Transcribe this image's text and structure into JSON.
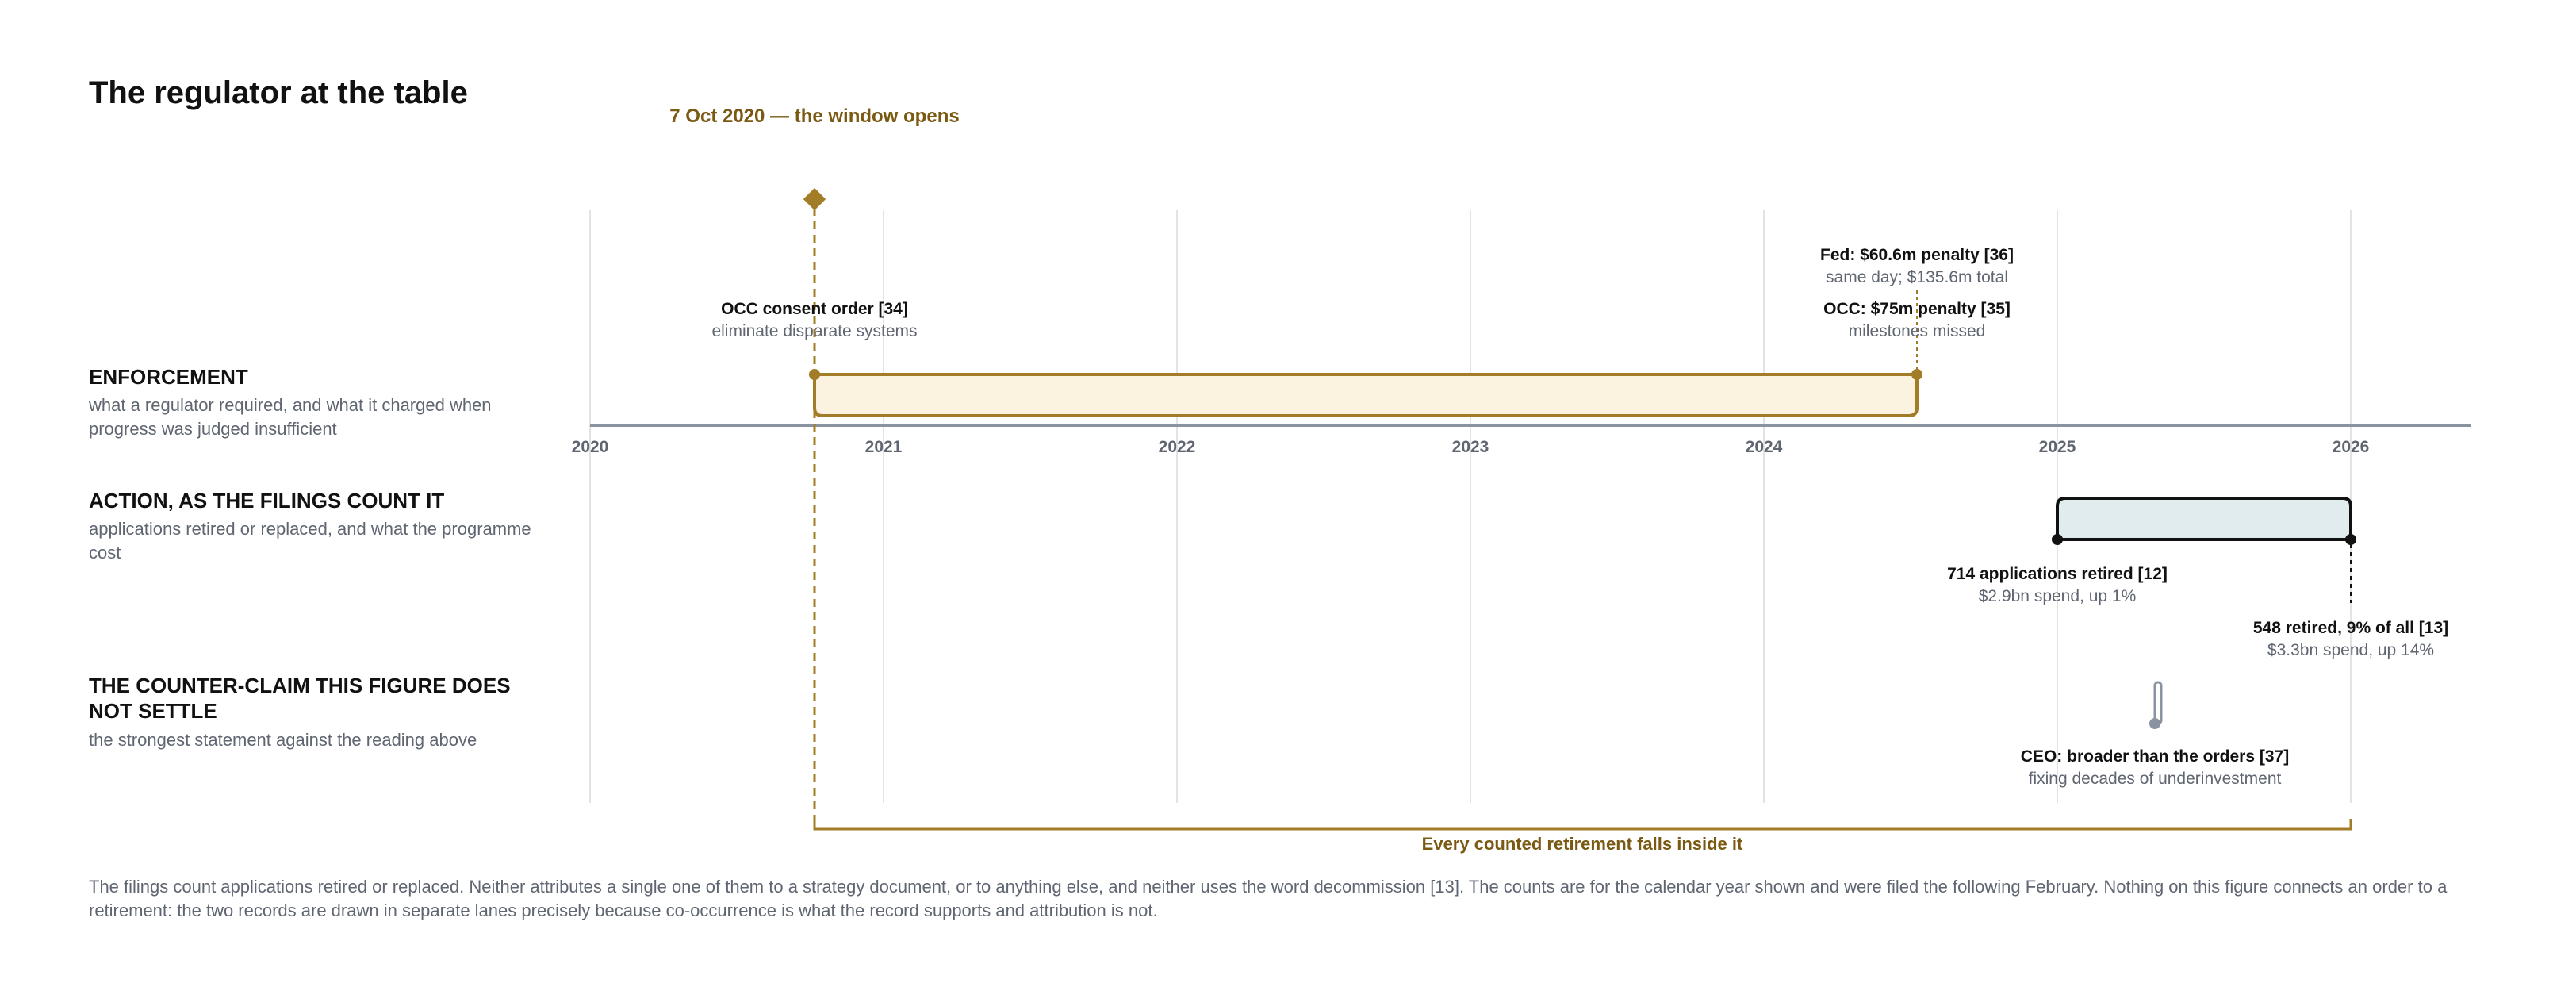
{
  "title": "The regulator at the table",
  "window_label": "7 Oct 2020 — the window opens",
  "lanes": [
    {
      "title_lines": [
        "ENFORCEMENT"
      ],
      "sub_lines": [
        "what a regulator required, and what it charged when",
        "progress was judged insufficient"
      ]
    },
    {
      "title_lines": [
        "ACTION, AS THE FILINGS COUNT IT"
      ],
      "sub_lines": [
        "applications retired or replaced, and what the programme",
        "cost"
      ]
    },
    {
      "title_lines": [
        "THE COUNTER-CLAIM THIS FIGURE DOES",
        "NOT SETTLE"
      ],
      "sub_lines": [
        "the strongest statement against the reading above"
      ]
    }
  ],
  "axis_years": [
    "2020",
    "2021",
    "2022",
    "2023",
    "2024",
    "2025",
    "2026"
  ],
  "annotations": {
    "occ_consent": {
      "title": "OCC consent order [34]",
      "sub": "eliminate disparate systems"
    },
    "fed_penalty": {
      "title": "Fed: $60.6m penalty [36]",
      "sub": "same day; $135.6m total"
    },
    "occ_penalty": {
      "title": "OCC: $75m penalty [35]",
      "sub": "milestones missed"
    },
    "retired_2024": {
      "title": "714 applications retired [12]",
      "sub": "$2.9bn spend, up 1%"
    },
    "retired_2025": {
      "title": "548 retired, 9% of all [13]",
      "sub": "$3.3bn spend, up 14%"
    },
    "ceo": {
      "title": "CEO: broader than the orders [37]",
      "sub": "fixing decades of underinvestment"
    }
  },
  "bracket_label": "Every counted retirement falls inside it",
  "footnote": "The filings count applications retired or replaced. Neither attributes a single one of them to a strategy document, or to anything else, and neither uses the word decommission [13]. The counts are for the calendar year shown and were filed the following February. Nothing on this figure connects an order to a retirement: the two records are drawn in separate lanes precisely because co-occurrence is what the record supports and attribution is not.",
  "colors": {
    "gold": "#a27c26",
    "gold_fill": "#fbf2e0",
    "action_fill": "#e1ecee",
    "axis": "#8a94a1",
    "grid": "#e3e3e3"
  }
}
